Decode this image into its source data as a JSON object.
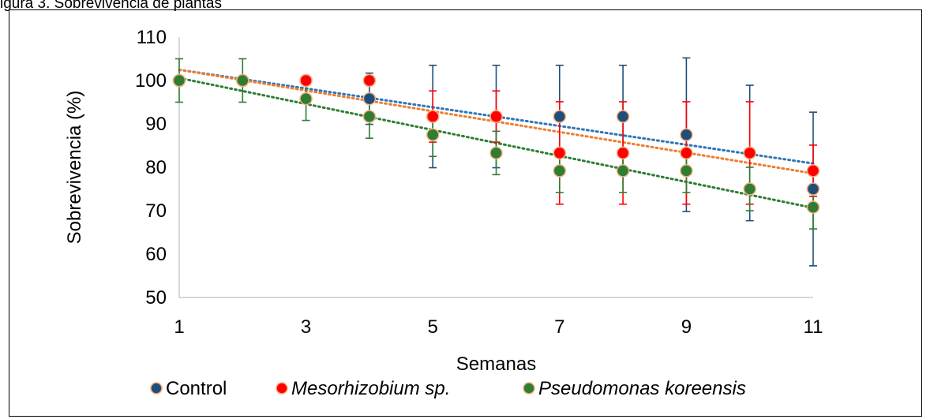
{
  "caption_fragment": "igura 3. Sobrevivencia de plantas",
  "chart_data": {
    "type": "scatter",
    "title": "",
    "xlabel": "Semanas",
    "ylabel": "Sobrevivencia (%)",
    "xlim": [
      1,
      11
    ],
    "ylim": [
      50,
      110
    ],
    "x_ticks": [
      1,
      3,
      5,
      7,
      9,
      11
    ],
    "y_ticks": [
      50,
      60,
      70,
      80,
      90,
      100,
      110
    ],
    "grid": false,
    "legend_position": "bottom",
    "trendline": "linear-dotted",
    "series": [
      {
        "name": "Control",
        "italic": false,
        "color": "#1f4e79",
        "trend_color": "#2e75b6",
        "x": [
          1,
          2,
          3,
          4,
          5,
          6,
          7,
          8,
          9,
          10,
          11
        ],
        "y": [
          100,
          100,
          100,
          95.8,
          91.7,
          91.7,
          91.7,
          91.7,
          87.5,
          83.3,
          75
        ],
        "error": [
          0,
          0,
          0,
          5.9,
          11.8,
          11.8,
          11.8,
          11.8,
          17.7,
          15.6,
          17.7
        ]
      },
      {
        "name": "Mesorhizobium sp.",
        "italic": true,
        "color": "#ff0000",
        "trend_color": "#ed7d31",
        "x": [
          1,
          2,
          3,
          4,
          5,
          6,
          7,
          8,
          9,
          10,
          11
        ],
        "y": [
          100,
          100,
          100,
          100,
          91.7,
          91.7,
          83.3,
          83.3,
          83.3,
          83.3,
          79.2
        ],
        "error": [
          0,
          0,
          0,
          0,
          5.9,
          5.9,
          11.8,
          11.8,
          11.8,
          11.8,
          5.9
        ]
      },
      {
        "name": "Pseudomonas koreensis",
        "italic": true,
        "color": "#2e7d32",
        "trend_color": "#2e7d32",
        "x": [
          1,
          2,
          3,
          4,
          5,
          6,
          7,
          8,
          9,
          10,
          11
        ],
        "y": [
          100,
          100,
          95.8,
          91.7,
          87.5,
          83.3,
          79.2,
          79.2,
          79.2,
          75,
          70.8
        ],
        "error": [
          5,
          5,
          5,
          5,
          5,
          5,
          5,
          5,
          5,
          5,
          5
        ]
      }
    ]
  }
}
